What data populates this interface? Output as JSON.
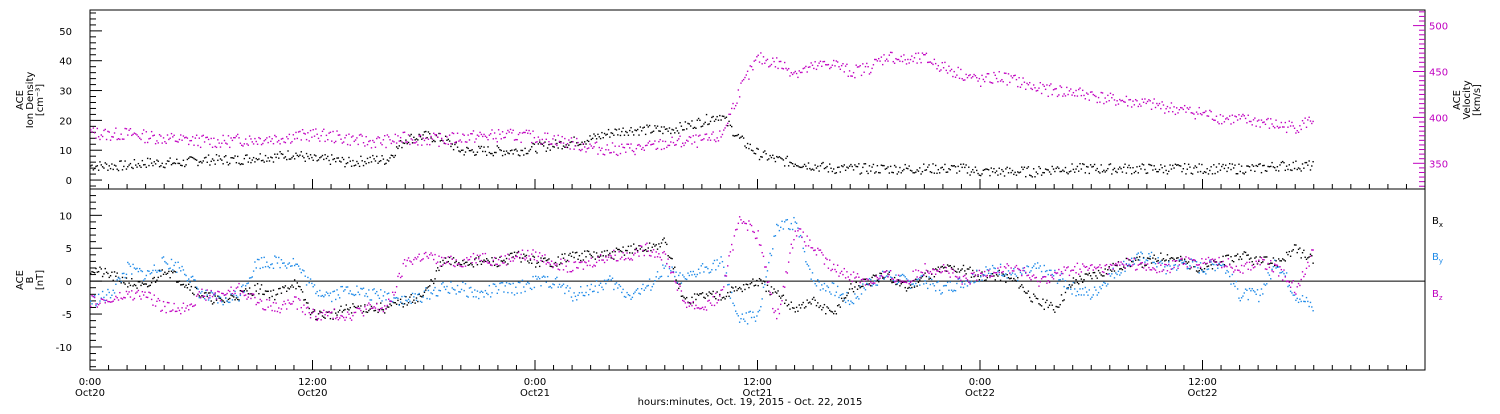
{
  "chart_data": [
    {
      "type": "scatter",
      "panel": "top",
      "ylabel_left": [
        "ACE",
        "Ion Density",
        "[cm⁻³]"
      ],
      "ylabel_right": [
        "ACE",
        "Velocity",
        "[km/s]"
      ],
      "ylim_left": [
        -3,
        57
      ],
      "ylim_right": [
        322,
        517
      ],
      "yticks_left": [
        "0",
        "10",
        "20",
        "30",
        "40",
        "50"
      ],
      "yticks_right": [
        "350",
        "400",
        "450",
        "500"
      ],
      "colors": {
        "density": "#000000",
        "velocity": "#c000c0"
      },
      "series": [
        {
          "axis": "left",
          "color": "#000000",
          "x": [
            0,
            1,
            2,
            3,
            4,
            5,
            6,
            7,
            8,
            9,
            10,
            11,
            12,
            13,
            14,
            15,
            16,
            17,
            18,
            19,
            20,
            21,
            22,
            23,
            24,
            25,
            26,
            27,
            28,
            29,
            30,
            31,
            32,
            33,
            34,
            35,
            36,
            37,
            38,
            39,
            40,
            41,
            42,
            43,
            44,
            45,
            46,
            47,
            48,
            49,
            50,
            51,
            52,
            53,
            54,
            55,
            56,
            57,
            58,
            59,
            60,
            61,
            62,
            63,
            64,
            65,
            66
          ],
          "values": [
            5,
            5,
            5,
            6,
            6,
            6,
            7,
            7,
            7,
            8,
            8,
            9,
            7,
            7,
            6,
            7,
            7,
            14,
            15,
            14,
            10,
            10,
            10,
            10,
            11,
            12,
            13,
            14,
            16,
            17,
            17,
            17,
            18,
            20,
            22,
            14,
            9,
            7,
            6,
            5,
            4,
            4,
            4,
            4,
            4,
            4,
            4,
            4,
            3,
            3,
            3,
            3,
            4,
            4,
            4,
            4,
            4,
            4,
            4,
            4,
            4,
            4,
            4,
            4,
            5,
            5,
            5
          ]
        },
        {
          "axis": "right",
          "color": "#c000c0",
          "x": [
            0,
            1,
            2,
            3,
            4,
            5,
            6,
            7,
            8,
            9,
            10,
            11,
            12,
            13,
            14,
            15,
            16,
            17,
            18,
            19,
            20,
            21,
            22,
            23,
            24,
            25,
            26,
            27,
            28,
            29,
            30,
            31,
            32,
            33,
            34,
            35,
            36,
            37,
            38,
            39,
            40,
            41,
            42,
            43,
            44,
            45,
            46,
            47,
            48,
            49,
            50,
            51,
            52,
            53,
            54,
            55,
            56,
            57,
            58,
            59,
            60,
            61,
            62,
            63,
            64,
            65,
            66
          ],
          "values": [
            384,
            382,
            383,
            380,
            378,
            376,
            375,
            374,
            376,
            377,
            378,
            380,
            382,
            380,
            377,
            374,
            375,
            378,
            377,
            376,
            379,
            380,
            381,
            381,
            379,
            377,
            372,
            368,
            366,
            366,
            368,
            372,
            374,
            375,
            380,
            430,
            465,
            460,
            450,
            455,
            460,
            450,
            455,
            468,
            462,
            465,
            455,
            448,
            440,
            445,
            440,
            432,
            430,
            428,
            425,
            420,
            418,
            415,
            412,
            408,
            405,
            400,
            398,
            396,
            392,
            390,
            399
          ]
        }
      ]
    },
    {
      "type": "scatter",
      "panel": "bottom",
      "ylabel": [
        "ACE",
        "B",
        "[nT]"
      ],
      "ylim": [
        -13.5,
        14
      ],
      "yticks": [
        "-10",
        "-5",
        "0",
        "5",
        "10"
      ],
      "zero_line": true,
      "series": [
        {
          "name": "B",
          "subscript": "x",
          "color": "#000000",
          "x": [
            0,
            1,
            2,
            3,
            4,
            5,
            6,
            7,
            8,
            9,
            10,
            11,
            12,
            13,
            14,
            15,
            16,
            17,
            18,
            19,
            20,
            21,
            22,
            23,
            24,
            25,
            26,
            27,
            28,
            29,
            30,
            31,
            32,
            33,
            34,
            35,
            36,
            37,
            38,
            39,
            40,
            41,
            42,
            43,
            44,
            45,
            46,
            47,
            48,
            49,
            50,
            51,
            52,
            53,
            54,
            55,
            56,
            57,
            58,
            59,
            60,
            61,
            62,
            63,
            64,
            65,
            66
          ],
          "values": [
            2,
            1,
            0,
            -1,
            2,
            0,
            -2,
            -3,
            -2,
            -1,
            -2,
            0,
            -5,
            -5,
            -4,
            -4,
            -4,
            -3,
            -2,
            3,
            3,
            3,
            3,
            4,
            3,
            3,
            4,
            4,
            4,
            5,
            5,
            6,
            -3,
            -2,
            -2,
            -1,
            0,
            -2,
            -4,
            -3,
            -5,
            -1,
            0,
            1,
            -1,
            1,
            2,
            2,
            1,
            1,
            0,
            -3,
            -4,
            0,
            1,
            2,
            3,
            3,
            4,
            3,
            2,
            3,
            4,
            3,
            3,
            5,
            3
          ]
        },
        {
          "name": "B",
          "subscript": "y",
          "color": "#1e8ae8",
          "x": [
            0,
            1,
            2,
            3,
            4,
            5,
            6,
            7,
            8,
            9,
            10,
            11,
            12,
            13,
            14,
            15,
            16,
            17,
            18,
            19,
            20,
            21,
            22,
            23,
            24,
            25,
            26,
            27,
            28,
            29,
            30,
            31,
            32,
            33,
            34,
            35,
            36,
            37,
            38,
            39,
            40,
            41,
            42,
            43,
            44,
            45,
            46,
            47,
            48,
            49,
            50,
            51,
            52,
            53,
            54,
            55,
            56,
            57,
            58,
            59,
            60,
            61,
            62,
            63,
            64,
            65,
            66
          ],
          "values": [
            -3,
            -2,
            2,
            1,
            3,
            2,
            -2,
            -3,
            -2,
            3,
            3,
            3,
            -1,
            -2,
            -1,
            -2,
            -2,
            -3,
            -2,
            -1,
            -1,
            -2,
            -1,
            -1,
            0,
            0,
            -2,
            -1,
            0,
            -2,
            -1,
            2,
            0,
            2,
            3,
            -6,
            -5,
            8,
            9,
            0,
            -1,
            -3,
            0,
            1,
            0,
            0,
            -1,
            0,
            1,
            2,
            1,
            2,
            1,
            -1,
            -2,
            1,
            3,
            4,
            2,
            3,
            2,
            3,
            -2,
            -2,
            3,
            -2,
            -4
          ]
        },
        {
          "name": "B",
          "subscript": "z",
          "color": "#c000c0",
          "x": [
            0,
            1,
            2,
            3,
            4,
            5,
            6,
            7,
            8,
            9,
            10,
            11,
            12,
            13,
            14,
            15,
            16,
            17,
            18,
            19,
            20,
            21,
            22,
            23,
            24,
            25,
            26,
            27,
            28,
            29,
            30,
            31,
            32,
            33,
            34,
            35,
            36,
            37,
            38,
            39,
            40,
            41,
            42,
            43,
            44,
            45,
            46,
            47,
            48,
            49,
            50,
            51,
            52,
            53,
            54,
            55,
            56,
            57,
            58,
            59,
            60,
            61,
            62,
            63,
            64,
            65,
            66
          ],
          "values": [
            -3,
            -3,
            -2,
            -2,
            -4,
            -4,
            -2,
            -2,
            -1,
            -3,
            -4,
            -3,
            -5,
            -5,
            -5,
            -4,
            -4,
            3,
            4,
            3,
            3,
            4,
            3,
            4,
            4,
            3,
            2,
            3,
            4,
            4,
            5,
            4,
            -3,
            -4,
            -2,
            10,
            7,
            -6,
            8,
            5,
            2,
            1,
            0,
            1,
            0,
            2,
            2,
            0,
            1,
            2,
            2,
            0,
            1,
            2,
            2,
            2,
            3,
            2,
            2,
            3,
            3,
            3,
            2,
            3,
            2,
            -1,
            5
          ]
        }
      ]
    }
  ],
  "x_axis": {
    "ticks": [
      {
        "time": "0:00",
        "date": "Oct20",
        "hour": 0
      },
      {
        "time": "12:00",
        "date": "Oct20",
        "hour": 12
      },
      {
        "time": "0:00",
        "date": "Oct21",
        "hour": 24
      },
      {
        "time": "12:00",
        "date": "Oct21",
        "hour": 36
      },
      {
        "time": "0:00",
        "date": "Oct22",
        "hour": 48
      },
      {
        "time": "12:00",
        "date": "Oct22",
        "hour": 60
      }
    ],
    "range_hours": [
      0,
      72
    ],
    "label": "hours:minutes, Oct. 19, 2015 - Oct. 22, 2015"
  }
}
